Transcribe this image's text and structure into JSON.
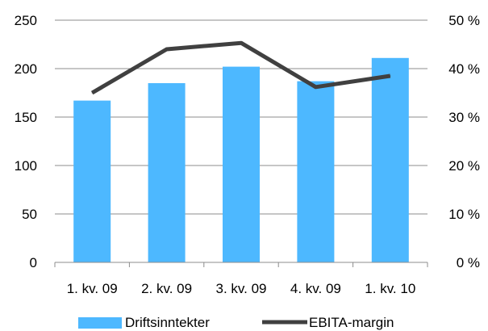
{
  "chart_data": {
    "type": "bar",
    "categories": [
      "1. kv. 09",
      "2. kv. 09",
      "3. kv. 09",
      "4. kv. 09",
      "1. kv. 10"
    ],
    "series": [
      {
        "name": "Driftsinntekter",
        "type": "bar",
        "axis": "left",
        "color": "#4DB8FF",
        "values": [
          167,
          185,
          202,
          187,
          211
        ]
      },
      {
        "name": "EBITA-margin",
        "type": "line",
        "axis": "right",
        "color": "#404040",
        "values": [
          35,
          44,
          45.3,
          36.2,
          38.5
        ]
      }
    ],
    "ylim": [
      0,
      250
    ],
    "yticks": [
      "0",
      "50",
      "100",
      "150",
      "200",
      "250"
    ],
    "y2lim": [
      0,
      50
    ],
    "y2ticks": [
      "0 %",
      "10 %",
      "20 %",
      "30 %",
      "40 %",
      "50 %"
    ],
    "grid": "horizontal",
    "legend": "bottom"
  }
}
